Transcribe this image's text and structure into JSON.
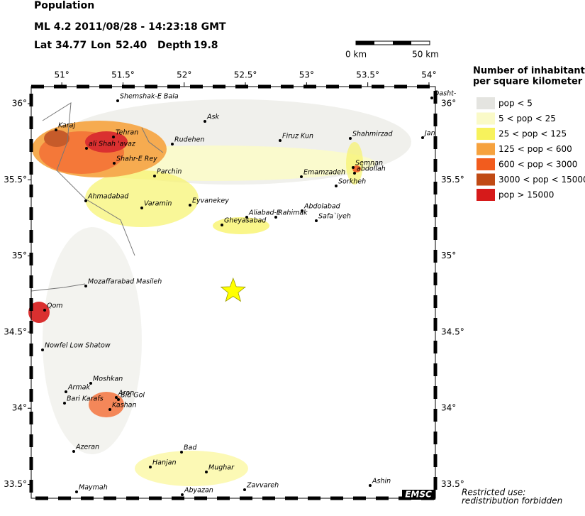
{
  "header": {
    "title": "Population",
    "event": "ML 4.2  2011/08/28 - 14:23:18 GMT",
    "lat_label": "Lat",
    "lon_label": "Lon",
    "depth_label": "Depth"
  },
  "epicenter": {
    "lat": {
      "value": 34.77,
      "label": "34.77"
    },
    "lon": {
      "value": 52.4,
      "label": "52.40"
    },
    "depth": 19.8
  },
  "scale_bar": {
    "start": "0 km",
    "end": "50 km"
  },
  "map": {
    "lon_ticks": [
      {
        "value": 51,
        "label": "51°"
      },
      {
        "value": 51.5,
        "label": "51.5°"
      },
      {
        "value": 52,
        "label": "52°"
      },
      {
        "value": 52.5,
        "label": "52.5°"
      },
      {
        "value": 53,
        "label": "53°"
      },
      {
        "value": 53.5,
        "label": "53.5°"
      },
      {
        "value": 54,
        "label": "54°"
      }
    ],
    "lat_ticks": [
      {
        "value": 36,
        "label": "36°"
      },
      {
        "value": 35.5,
        "label": "35.5°"
      },
      {
        "value": 35,
        "label": "35°"
      },
      {
        "value": 34.5,
        "label": "34.5°"
      },
      {
        "value": 34,
        "label": "34°"
      },
      {
        "value": 33.5,
        "label": "33.5°"
      }
    ],
    "cities": [
      "Shemshak-E Bala",
      "Ask",
      "Karaj",
      "Tehran",
      "Rudehen",
      "Firuz Kun",
      "Shahmirzad",
      "Dasht-",
      "Jan",
      "ali Shah 'avaz",
      "Shahr-E Rey",
      "Parchin",
      "Emamzadeh",
      "Semnan",
      "abdollah",
      "Sorkheh",
      "Ahmadabad",
      "Varamin",
      "Eyvanekey",
      "Abdolabad",
      "Aliabad-E",
      "Rahimak",
      "Safa`iyeh",
      "Gheyasabad",
      "Mozaffarabad Masileh",
      "Qom",
      "Nowfel Low Shatow",
      "Moshkan",
      "Armak",
      "Aran",
      "Bid Gol",
      "Bari Karafs",
      "Kashan",
      "Azeran",
      "Bad",
      "Hanjan",
      "Mughar",
      "Ashin",
      "Maymah",
      "Zavvareh",
      "Abyazan"
    ]
  },
  "legend": {
    "title_1": "Number of inhabitants",
    "title_2": "per square kilometer",
    "items": [
      {
        "label": "pop < 5",
        "color": "#e4e4e0"
      },
      {
        "label": "5 < pop < 25",
        "color": "#fafac8"
      },
      {
        "label": "25 < pop < 125",
        "color": "#f7f25c"
      },
      {
        "label": "125 < pop < 600",
        "color": "#f6a23e"
      },
      {
        "label": "600 < pop < 3000",
        "color": "#f25c1e"
      },
      {
        "label": "3000 < pop < 15000",
        "color": "#c04a14"
      },
      {
        "label": "pop > 15000",
        "color": "#d61a1a"
      }
    ]
  },
  "footer": {
    "logo": "EMSC",
    "note_1": "Restricted use:",
    "note_2": "redistribution forbidden"
  }
}
